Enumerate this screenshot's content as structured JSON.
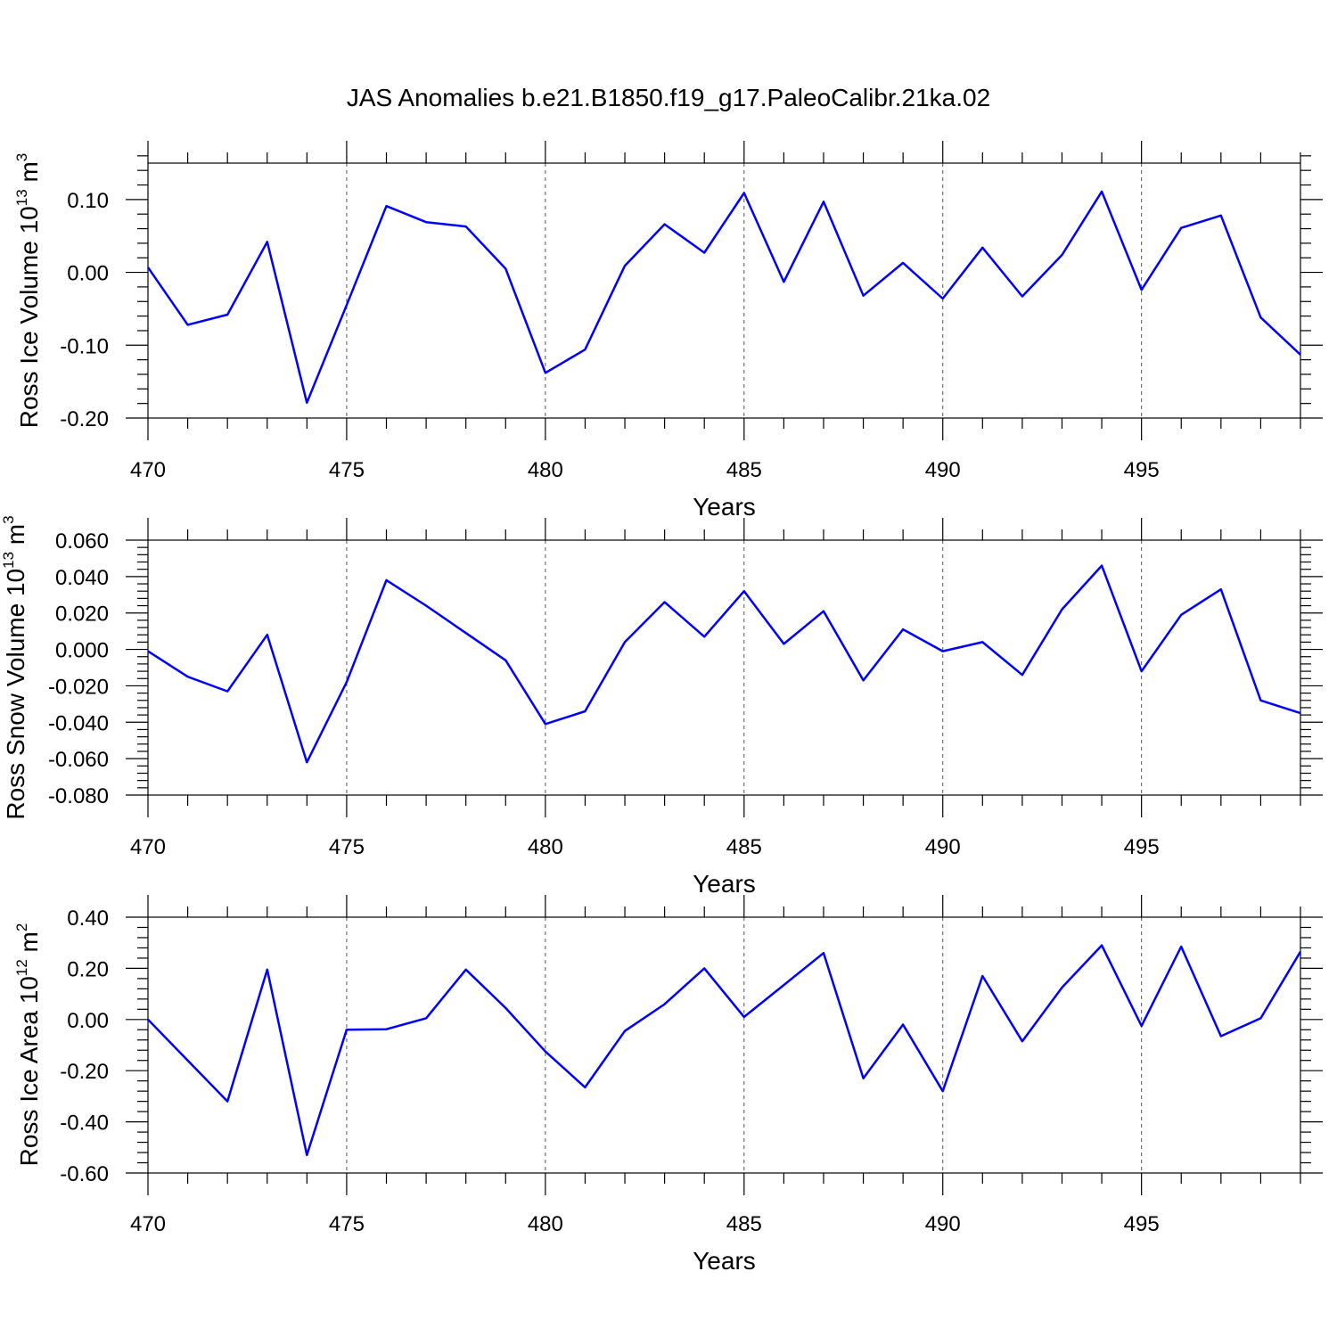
{
  "title": "JAS Anomalies b.e21.B1850.f19_g17.PaleoCalibr.21ka.02",
  "colors": {
    "series": "#0000ff",
    "axes": "#000000",
    "grid": "#555555"
  },
  "chart_data": [
    {
      "type": "line",
      "xlabel": "Years",
      "ylabel": {
        "main": "Ross Ice Volume 10",
        "exp": "13",
        "unit": " m",
        "unit_exp": "3"
      },
      "xlim": [
        470,
        499
      ],
      "ylim": [
        -0.2,
        0.15
      ],
      "xticks": [
        "470",
        "475",
        "480",
        "485",
        "490",
        "495"
      ],
      "yticks": [
        "-0.20",
        "-0.10",
        "0.00",
        "0.10"
      ],
      "grid": "vertical dashed at major x ticks",
      "x": [
        470,
        471,
        472,
        473,
        474,
        475,
        476,
        477,
        478,
        479,
        480,
        481,
        482,
        483,
        484,
        485,
        486,
        487,
        488,
        489,
        490,
        491,
        492,
        493,
        494,
        495,
        496,
        497,
        498,
        499
      ],
      "series": [
        {
          "values": [
            0.007,
            -0.072,
            -0.058,
            0.042,
            -0.179,
            -0.045,
            0.091,
            0.069,
            0.063,
            0.005,
            -0.138,
            -0.106,
            0.009,
            0.066,
            0.027,
            0.109,
            -0.013,
            0.097,
            -0.032,
            0.013,
            -0.036,
            0.034,
            -0.033,
            0.024,
            0.111,
            -0.024,
            0.061,
            0.078,
            -0.062,
            -0.113
          ]
        }
      ]
    },
    {
      "type": "line",
      "xlabel": "Years",
      "ylabel": {
        "main": "Ross Snow Volume 10",
        "exp": "13",
        "unit": " m",
        "unit_exp": "3"
      },
      "xlim": [
        470,
        499
      ],
      "ylim": [
        -0.08,
        0.06
      ],
      "xticks": [
        "470",
        "475",
        "480",
        "485",
        "490",
        "495"
      ],
      "yticks": [
        "-0.080",
        "-0.060",
        "-0.040",
        "-0.020",
        "0.000",
        "0.020",
        "0.040",
        "0.060"
      ],
      "grid": "vertical dashed at major x ticks",
      "x": [
        470,
        471,
        472,
        473,
        474,
        475,
        476,
        477,
        478,
        479,
        480,
        481,
        482,
        483,
        484,
        485,
        486,
        487,
        488,
        489,
        490,
        491,
        492,
        493,
        494,
        495,
        496,
        497,
        498,
        499
      ],
      "series": [
        {
          "values": [
            -0.001,
            -0.015,
            -0.023,
            0.008,
            -0.062,
            -0.018,
            0.038,
            0.024,
            0.009,
            -0.006,
            -0.041,
            -0.034,
            0.004,
            0.026,
            0.007,
            0.032,
            0.003,
            0.021,
            -0.017,
            0.011,
            -0.001,
            0.004,
            -0.014,
            0.022,
            0.046,
            -0.012,
            0.019,
            0.033,
            -0.028,
            -0.035
          ]
        }
      ]
    },
    {
      "type": "line",
      "xlabel": "Years",
      "ylabel": {
        "main": "Ross Ice Area 10",
        "exp": "12",
        "unit": " m",
        "unit_exp": "2"
      },
      "xlim": [
        470,
        499
      ],
      "ylim": [
        -0.6,
        0.4
      ],
      "xticks": [
        "470",
        "475",
        "480",
        "485",
        "490",
        "495"
      ],
      "yticks": [
        "-0.60",
        "-0.40",
        "-0.20",
        "0.00",
        "0.20",
        "0.40"
      ],
      "grid": "vertical dashed at major x ticks",
      "x": [
        470,
        471,
        472,
        473,
        474,
        475,
        476,
        477,
        478,
        479,
        480,
        481,
        482,
        483,
        484,
        485,
        486,
        487,
        488,
        489,
        490,
        491,
        492,
        493,
        494,
        495,
        496,
        497,
        498,
        499
      ],
      "series": [
        {
          "values": [
            0.0,
            -0.16,
            -0.32,
            0.195,
            -0.53,
            -0.04,
            -0.038,
            0.005,
            0.195,
            0.045,
            -0.125,
            -0.265,
            -0.045,
            0.06,
            0.2,
            0.01,
            0.135,
            0.26,
            -0.23,
            -0.02,
            -0.28,
            0.17,
            -0.085,
            0.125,
            0.29,
            -0.025,
            0.285,
            -0.065,
            0.005,
            0.265
          ]
        }
      ]
    }
  ]
}
